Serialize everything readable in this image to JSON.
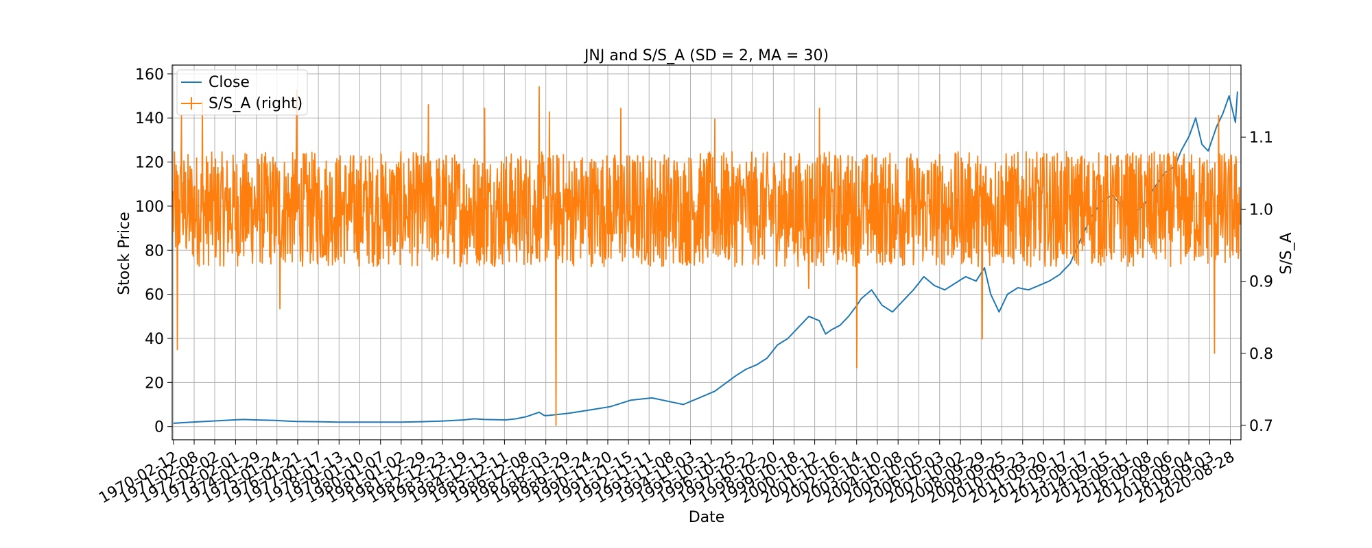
{
  "chart_data": {
    "type": "line",
    "title": "JNJ and S/S_A (SD = 2, MA = 30)",
    "xlabel": "Date",
    "ylabel": "Stock Price",
    "ylabel_right": "S/S_A",
    "xlim": [
      "1970-01-20",
      "2021-03-01"
    ],
    "ylim": [
      -6,
      164
    ],
    "ylim_right": [
      0.68,
      1.2
    ],
    "grid": true,
    "legend_position": "top-left",
    "x_tick_labels": [
      "1970-02-12",
      "1971-02-08",
      "1972-02-02",
      "1973-02-01",
      "1974-01-29",
      "1975-01-24",
      "1976-01-21",
      "1977-01-17",
      "1978-01-13",
      "1979-01-10",
      "1980-01-07",
      "1981-01-02",
      "1981-12-29",
      "1982-12-23",
      "1983-12-19",
      "1984-12-13",
      "1985-12-11",
      "1986-12-08",
      "1987-12-03",
      "1988-11-29",
      "1989-11-24",
      "1990-11-20",
      "1991-11-15",
      "1992-11-11",
      "1993-11-08",
      "1994-11-03",
      "1995-10-31",
      "1996-10-25",
      "1997-10-22",
      "1998-10-20",
      "1999-10-18",
      "2000-10-12",
      "2001-10-16",
      "2002-10-14",
      "2003-10-10",
      "2004-10-08",
      "2005-10-05",
      "2006-10-03",
      "2007-10-02",
      "2008-09-29",
      "2009-09-25",
      "2010-09-23",
      "2011-09-20",
      "2012-09-17",
      "2013-09-17",
      "2014-09-15",
      "2015-09-11",
      "2016-09-08",
      "2017-09-06",
      "2018-09-04",
      "2019-09-03",
      "2020-08-28"
    ],
    "y_ticks": [
      0,
      20,
      40,
      60,
      80,
      100,
      120,
      140,
      160
    ],
    "y_ticks_right": [
      0.7,
      0.8,
      0.9,
      1.0,
      1.1
    ],
    "y_tick_labels_right": [
      "0.7",
      "0.8",
      "0.9",
      "1.0",
      "1.1"
    ],
    "series": [
      {
        "name": "Close",
        "axis": "left",
        "color": "#1f77b4",
        "x": [
          1970.1,
          1971.0,
          1972.0,
          1973.0,
          1973.5,
          1974.0,
          1975.0,
          1975.5,
          1976.0,
          1977.0,
          1978.0,
          1979.0,
          1980.0,
          1981.0,
          1982.0,
          1983.0,
          1984.0,
          1984.5,
          1985.0,
          1986.0,
          1986.5,
          1987.0,
          1987.6,
          1987.85,
          1988.0,
          1989.0,
          1990.0,
          1991.0,
          1992.0,
          1993.0,
          1994.0,
          1994.5,
          1995.0,
          1996.0,
          1997.0,
          1997.5,
          1998.0,
          1998.5,
          1999.0,
          1999.5,
          2000.0,
          2000.5,
          2001.0,
          2001.3,
          2001.6,
          2002.0,
          2002.4,
          2002.8,
          2003.0,
          2003.5,
          2004.0,
          2004.5,
          2005.0,
          2005.5,
          2006.0,
          2006.5,
          2007.0,
          2007.5,
          2008.0,
          2008.5,
          2008.9,
          2009.2,
          2009.6,
          2010.0,
          2010.5,
          2011.0,
          2011.5,
          2012.0,
          2012.5,
          2013.0,
          2013.5,
          2014.0,
          2014.5,
          2015.0,
          2015.5,
          2016.0,
          2016.5,
          2017.0,
          2017.5,
          2018.0,
          2018.3,
          2018.7,
          2019.0,
          2019.3,
          2019.6,
          2020.0,
          2020.3,
          2020.6,
          2020.9,
          2021.0
        ],
        "y": [
          1.5,
          2,
          2.5,
          3,
          3.2,
          3,
          2.8,
          2.5,
          2.3,
          2.2,
          2,
          2,
          2,
          2,
          2.2,
          2.5,
          3,
          3.5,
          3.2,
          3,
          3.5,
          4.5,
          6.5,
          5,
          5,
          6,
          7.5,
          9,
          12,
          13,
          11,
          10,
          12,
          16,
          23,
          26,
          28,
          31,
          37,
          40,
          45,
          50,
          48,
          42,
          44,
          46,
          50,
          55,
          58,
          62,
          55,
          52,
          57,
          62,
          68,
          64,
          62,
          65,
          68,
          66,
          72,
          60,
          52,
          60,
          63,
          62,
          64,
          66,
          69,
          74,
          85,
          95,
          102,
          105,
          100,
          97,
          100,
          108,
          115,
          118,
          125,
          132,
          140,
          128,
          125,
          136,
          142,
          150,
          138,
          152
        ]
      },
      {
        "name": "S/S_A (right)",
        "axis": "right",
        "color": "#ff7f0e",
        "band_center": 1.0,
        "band_halfwidth": 0.08,
        "spikes": [
          {
            "x": 1970.3,
            "y": 0.805
          },
          {
            "x": 1970.5,
            "y": 1.13
          },
          {
            "x": 1971.5,
            "y": 1.15
          },
          {
            "x": 1975.2,
            "y": 0.862
          },
          {
            "x": 1976.0,
            "y": 1.165
          },
          {
            "x": 1982.3,
            "y": 1.145
          },
          {
            "x": 1985.0,
            "y": 1.14
          },
          {
            "x": 1987.6,
            "y": 1.17
          },
          {
            "x": 1988.1,
            "y": 1.135
          },
          {
            "x": 1988.4,
            "y": 0.7
          },
          {
            "x": 1991.5,
            "y": 1.14
          },
          {
            "x": 1996.0,
            "y": 1.125
          },
          {
            "x": 2000.5,
            "y": 0.89
          },
          {
            "x": 2001.0,
            "y": 1.14
          },
          {
            "x": 2002.8,
            "y": 0.78
          },
          {
            "x": 2008.8,
            "y": 0.82
          },
          {
            "x": 2019.9,
            "y": 0.8
          },
          {
            "x": 2020.1,
            "y": 1.13
          }
        ]
      }
    ]
  }
}
